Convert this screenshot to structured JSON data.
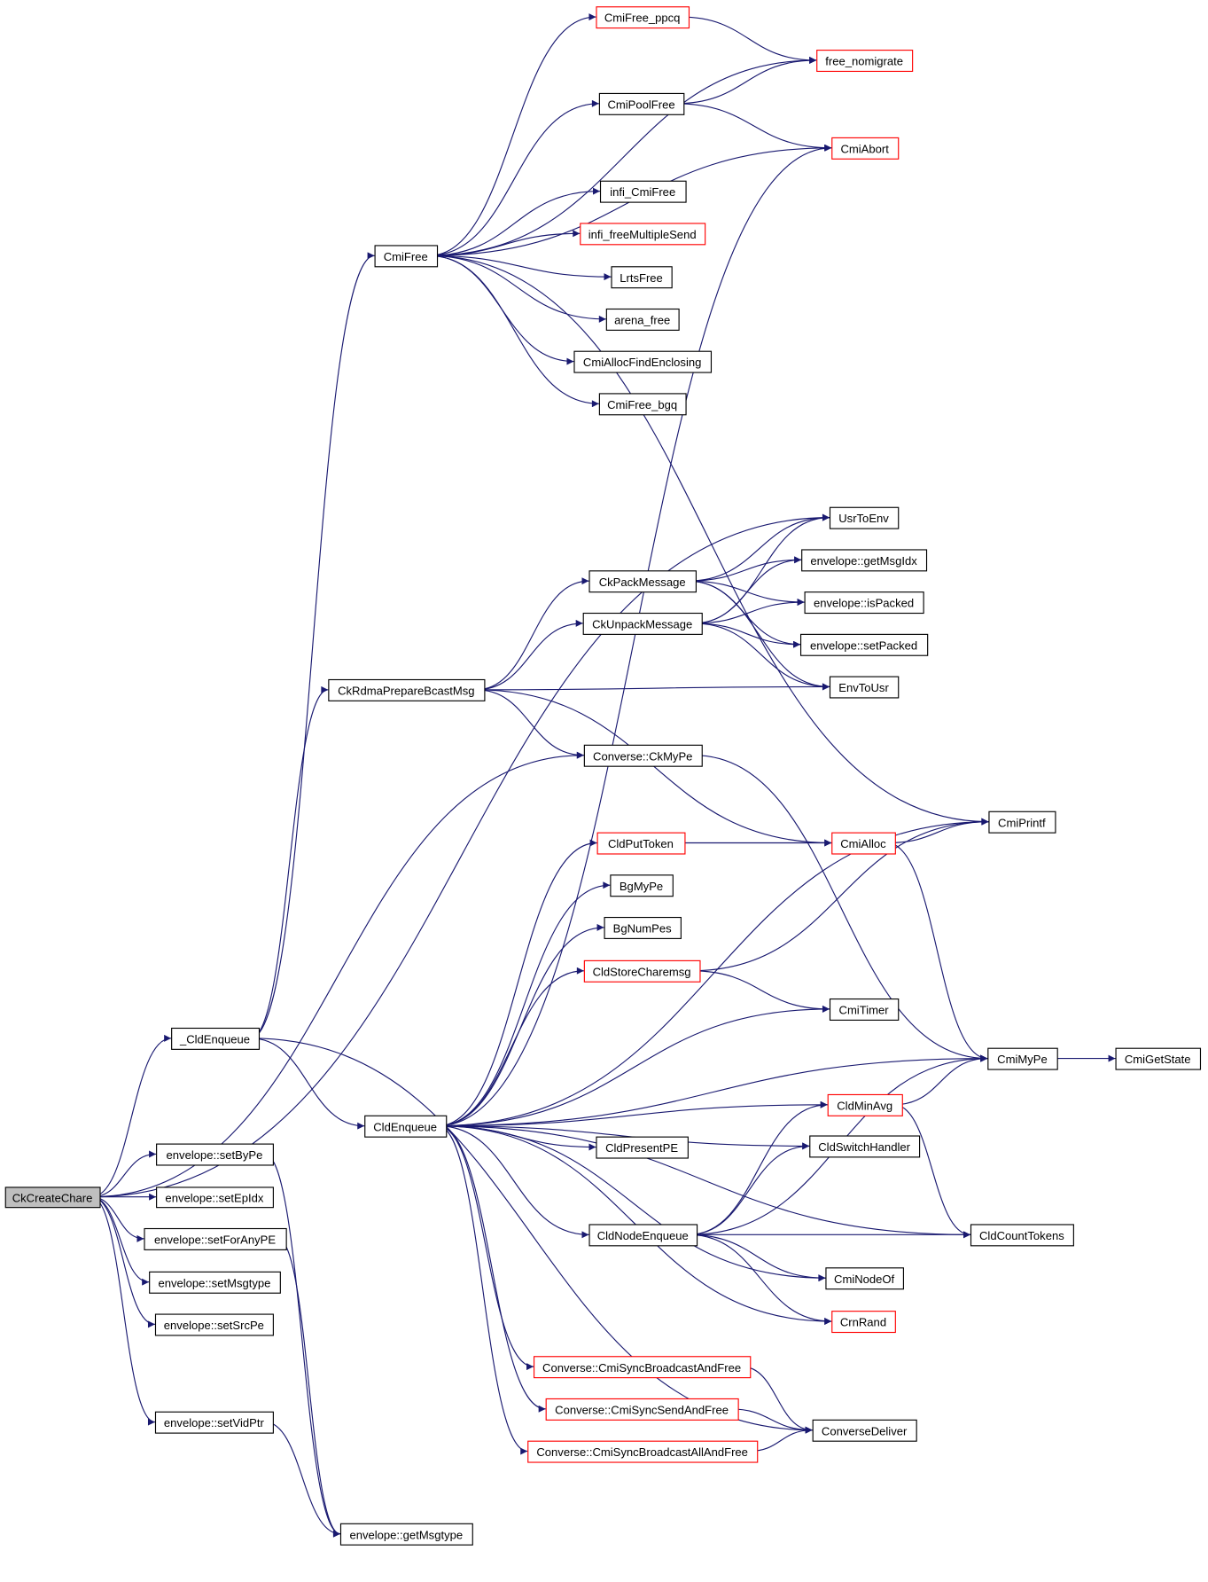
{
  "colors": {
    "edge": "#191970",
    "truncated_border": "#ff0000",
    "root_fill": "#bfbfbf",
    "border": "#000000"
  },
  "nodes": [
    {
      "id": "CkCreateChare",
      "label": "CkCreateChare",
      "style": "root"
    },
    {
      "id": "_CldEnqueue",
      "label": "_CldEnqueue"
    },
    {
      "id": "setByPe",
      "label": "envelope::setByPe"
    },
    {
      "id": "setEpIdx",
      "label": "envelope::setEpIdx"
    },
    {
      "id": "setForAnyPE",
      "label": "envelope::setForAnyPE"
    },
    {
      "id": "setMsgtype",
      "label": "envelope::setMsgtype"
    },
    {
      "id": "setSrcPe",
      "label": "envelope::setSrcPe"
    },
    {
      "id": "setVidPtr",
      "label": "envelope::setVidPtr"
    },
    {
      "id": "getMsgtype",
      "label": "envelope::getMsgtype"
    },
    {
      "id": "CmiFree",
      "label": "CmiFree"
    },
    {
      "id": "CkRdmaPrepareBcastMsg",
      "label": "CkRdmaPrepareBcastMsg"
    },
    {
      "id": "CldEnqueue",
      "label": "CldEnqueue"
    },
    {
      "id": "CmiFree_ppcq",
      "label": "CmiFree_ppcq",
      "style": "red"
    },
    {
      "id": "free_nomigrate",
      "label": "free_nomigrate",
      "style": "red"
    },
    {
      "id": "CmiPoolFree",
      "label": "CmiPoolFree"
    },
    {
      "id": "CmiAbort",
      "label": "CmiAbort",
      "style": "red"
    },
    {
      "id": "infi_CmiFree",
      "label": "infi_CmiFree"
    },
    {
      "id": "infi_freeMultipleSend",
      "label": "infi_freeMultipleSend",
      "style": "red"
    },
    {
      "id": "LrtsFree",
      "label": "LrtsFree"
    },
    {
      "id": "arena_free",
      "label": "arena_free"
    },
    {
      "id": "CmiAllocFindEnclosing",
      "label": "CmiAllocFindEnclosing"
    },
    {
      "id": "CmiFree_bgq",
      "label": "CmiFree_bgq"
    },
    {
      "id": "UsrToEnv",
      "label": "UsrToEnv"
    },
    {
      "id": "getMsgIdx",
      "label": "envelope::getMsgIdx"
    },
    {
      "id": "CkPackMessage",
      "label": "CkPackMessage"
    },
    {
      "id": "isPacked",
      "label": "envelope::isPacked"
    },
    {
      "id": "CkUnpackMessage",
      "label": "CkUnpackMessage"
    },
    {
      "id": "setPacked",
      "label": "envelope::setPacked"
    },
    {
      "id": "EnvToUsr",
      "label": "EnvToUsr"
    },
    {
      "id": "CkMyPe",
      "label": "Converse::CkMyPe"
    },
    {
      "id": "CmiPrintf",
      "label": "CmiPrintf"
    },
    {
      "id": "CldPutToken",
      "label": "CldPutToken",
      "style": "red"
    },
    {
      "id": "CmiAlloc",
      "label": "CmiAlloc",
      "style": "red"
    },
    {
      "id": "BgMyPe",
      "label": "BgMyPe"
    },
    {
      "id": "BgNumPes",
      "label": "BgNumPes"
    },
    {
      "id": "CldStoreCharemsg",
      "label": "CldStoreCharemsg",
      "style": "red"
    },
    {
      "id": "CmiTimer",
      "label": "CmiTimer"
    },
    {
      "id": "CmiMyPe",
      "label": "CmiMyPe"
    },
    {
      "id": "CmiGetState",
      "label": "CmiGetState"
    },
    {
      "id": "CldMinAvg",
      "label": "CldMinAvg",
      "style": "red"
    },
    {
      "id": "CldPresentPE",
      "label": "CldPresentPE"
    },
    {
      "id": "CldSwitchHandler",
      "label": "CldSwitchHandler"
    },
    {
      "id": "CldNodeEnqueue",
      "label": "CldNodeEnqueue"
    },
    {
      "id": "CldCountTokens",
      "label": "CldCountTokens"
    },
    {
      "id": "CmiNodeOf",
      "label": "CmiNodeOf"
    },
    {
      "id": "CrnRand",
      "label": "CrnRand",
      "style": "red"
    },
    {
      "id": "SyncBcast",
      "label": "Converse::CmiSyncBroadcastAndFree",
      "style": "red"
    },
    {
      "id": "SyncSend",
      "label": "Converse::CmiSyncSendAndFree",
      "style": "red"
    },
    {
      "id": "SyncBcastAll",
      "label": "Converse::CmiSyncBroadcastAllAndFree",
      "style": "red"
    },
    {
      "id": "ConverseDeliver",
      "label": "ConverseDeliver"
    }
  ],
  "edges": [
    [
      "CkCreateChare",
      "_CldEnqueue"
    ],
    [
      "CkCreateChare",
      "setByPe"
    ],
    [
      "CkCreateChare",
      "setEpIdx"
    ],
    [
      "CkCreateChare",
      "setForAnyPE"
    ],
    [
      "CkCreateChare",
      "setMsgtype"
    ],
    [
      "CkCreateChare",
      "setSrcPe"
    ],
    [
      "CkCreateChare",
      "setVidPtr"
    ],
    [
      "CkCreateChare",
      "UsrToEnv"
    ],
    [
      "CkCreateChare",
      "CkMyPe"
    ],
    [
      "_CldEnqueue",
      "CmiFree"
    ],
    [
      "_CldEnqueue",
      "CkRdmaPrepareBcastMsg"
    ],
    [
      "_CldEnqueue",
      "CldEnqueue"
    ],
    [
      "_CldEnqueue",
      "ConverseDeliver"
    ],
    [
      "setByPe",
      "getMsgtype"
    ],
    [
      "setForAnyPE",
      "getMsgtype"
    ],
    [
      "setVidPtr",
      "getMsgtype"
    ],
    [
      "CmiFree",
      "CmiFree_ppcq"
    ],
    [
      "CmiFree",
      "free_nomigrate"
    ],
    [
      "CmiFree",
      "CmiPoolFree"
    ],
    [
      "CmiFree",
      "CmiAbort"
    ],
    [
      "CmiFree",
      "infi_CmiFree"
    ],
    [
      "CmiFree",
      "infi_freeMultipleSend"
    ],
    [
      "CmiFree",
      "LrtsFree"
    ],
    [
      "CmiFree",
      "arena_free"
    ],
    [
      "CmiFree",
      "CmiAllocFindEnclosing"
    ],
    [
      "CmiFree",
      "CmiFree_bgq"
    ],
    [
      "CmiFree",
      "CmiPrintf"
    ],
    [
      "CmiFree_ppcq",
      "free_nomigrate"
    ],
    [
      "CmiPoolFree",
      "free_nomigrate"
    ],
    [
      "CmiPoolFree",
      "CmiAbort"
    ],
    [
      "CkRdmaPrepareBcastMsg",
      "CkPackMessage"
    ],
    [
      "CkRdmaPrepareBcastMsg",
      "CkUnpackMessage"
    ],
    [
      "CkRdmaPrepareBcastMsg",
      "EnvToUsr"
    ],
    [
      "CkRdmaPrepareBcastMsg",
      "CkMyPe"
    ],
    [
      "CkRdmaPrepareBcastMsg",
      "CmiAlloc"
    ],
    [
      "CkPackMessage",
      "UsrToEnv"
    ],
    [
      "CkPackMessage",
      "getMsgIdx"
    ],
    [
      "CkPackMessage",
      "isPacked"
    ],
    [
      "CkPackMessage",
      "setPacked"
    ],
    [
      "CkPackMessage",
      "EnvToUsr"
    ],
    [
      "CkUnpackMessage",
      "UsrToEnv"
    ],
    [
      "CkUnpackMessage",
      "getMsgIdx"
    ],
    [
      "CkUnpackMessage",
      "isPacked"
    ],
    [
      "CkUnpackMessage",
      "setPacked"
    ],
    [
      "CkUnpackMessage",
      "EnvToUsr"
    ],
    [
      "CkMyPe",
      "CmiMyPe"
    ],
    [
      "CldEnqueue",
      "CmiAbort"
    ],
    [
      "CldEnqueue",
      "CmiPrintf"
    ],
    [
      "CldEnqueue",
      "CldPutToken"
    ],
    [
      "CldEnqueue",
      "BgMyPe"
    ],
    [
      "CldEnqueue",
      "BgNumPes"
    ],
    [
      "CldEnqueue",
      "CldStoreCharemsg"
    ],
    [
      "CldEnqueue",
      "CmiTimer"
    ],
    [
      "CldEnqueue",
      "CmiMyPe"
    ],
    [
      "CldEnqueue",
      "CldMinAvg"
    ],
    [
      "CldEnqueue",
      "CldPresentPE"
    ],
    [
      "CldEnqueue",
      "CldSwitchHandler"
    ],
    [
      "CldEnqueue",
      "CldNodeEnqueue"
    ],
    [
      "CldEnqueue",
      "CmiNodeOf"
    ],
    [
      "CldEnqueue",
      "CrnRand"
    ],
    [
      "CldEnqueue",
      "SyncBcast"
    ],
    [
      "CldEnqueue",
      "SyncSend"
    ],
    [
      "CldEnqueue",
      "SyncBcastAll"
    ],
    [
      "CldEnqueue",
      "CldCountTokens"
    ],
    [
      "CldPutToken",
      "CmiAlloc"
    ],
    [
      "CmiAlloc",
      "CmiPrintf"
    ],
    [
      "CmiAlloc",
      "CmiMyPe"
    ],
    [
      "CldStoreCharemsg",
      "CmiPrintf"
    ],
    [
      "CldStoreCharemsg",
      "CmiTimer"
    ],
    [
      "CmiMyPe",
      "CmiGetState"
    ],
    [
      "CldMinAvg",
      "CmiMyPe"
    ],
    [
      "CldMinAvg",
      "CldCountTokens"
    ],
    [
      "CldNodeEnqueue",
      "CldMinAvg"
    ],
    [
      "CldNodeEnqueue",
      "CldSwitchHandler"
    ],
    [
      "CldNodeEnqueue",
      "CmiMyPe"
    ],
    [
      "CldNodeEnqueue",
      "CldCountTokens"
    ],
    [
      "CldNodeEnqueue",
      "CmiNodeOf"
    ],
    [
      "CldNodeEnqueue",
      "CrnRand"
    ],
    [
      "SyncBcast",
      "ConverseDeliver"
    ],
    [
      "SyncSend",
      "ConverseDeliver"
    ],
    [
      "SyncBcastAll",
      "ConverseDeliver"
    ]
  ]
}
